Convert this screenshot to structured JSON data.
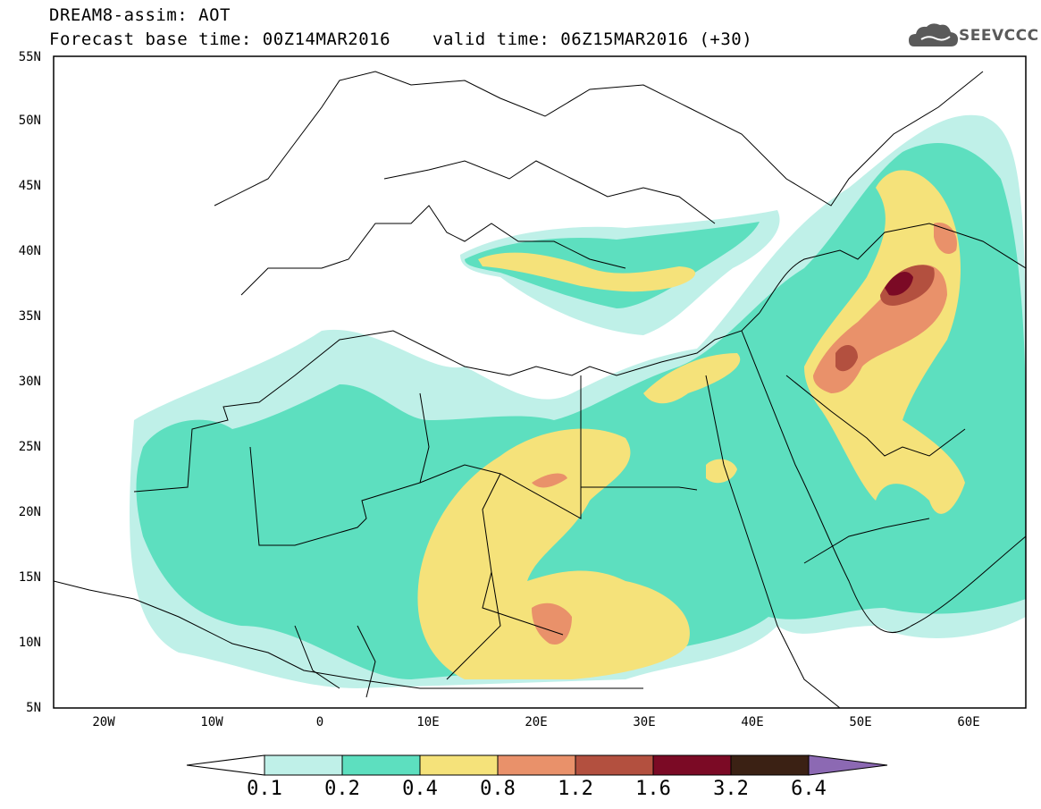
{
  "header": {
    "model": "DREAM8-assim: AOT",
    "base_time": "Forecast base time: 00Z14MAR2016",
    "valid_time": "valid time: 06Z15MAR2016 (+30)"
  },
  "logo": {
    "name": "SEEVCCC",
    "icon": "cloud-icon",
    "color": "#5a5a5a"
  },
  "map": {
    "lat_labels": [
      "55N",
      "50N",
      "45N",
      "40N",
      "35N",
      "30N",
      "25N",
      "20N",
      "15N",
      "10N",
      "5N"
    ],
    "lon_labels": [
      "20W",
      "10W",
      "0",
      "10E",
      "20E",
      "30E",
      "40E",
      "50E",
      "60E"
    ]
  },
  "colorbar": {
    "levels": [
      "0.1",
      "0.2",
      "0.4",
      "0.8",
      "1.2",
      "1.6",
      "3.2",
      "6.4"
    ],
    "colors": [
      "#ffffff",
      "#bff0e8",
      "#5ddfbf",
      "#f5e27a",
      "#e9916a",
      "#b3503f",
      "#7b0a25",
      "#3b2114",
      "#8c69b3"
    ]
  }
}
